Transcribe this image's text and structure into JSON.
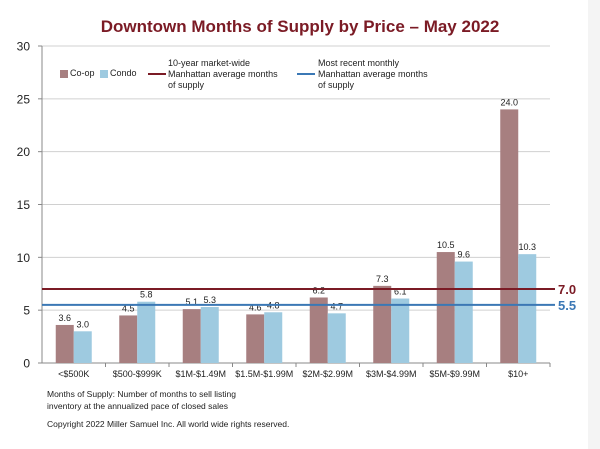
{
  "chart_data": {
    "type": "bar",
    "title": "Downtown Months of Supply by Price – May 2022",
    "xlabel": "",
    "ylabel": "",
    "ylim": [
      0,
      30
    ],
    "yticks": [
      "0",
      "5",
      "10",
      "15",
      "20",
      "25",
      "30"
    ],
    "grid": true,
    "categories": [
      "<$500K",
      "$500-$999K",
      "$1M-$1.49M",
      "$1.5M-$1.99M",
      "$2M-$2.99M",
      "$3M-$4.99M",
      "$5M-$9.99M",
      "$10+"
    ],
    "series": [
      {
        "name": "Co-op",
        "color": "#a77f80",
        "values": [
          3.6,
          4.5,
          5.1,
          4.6,
          6.2,
          7.3,
          10.5,
          24.0
        ],
        "labels": [
          "3.6",
          "4.5",
          "5.1",
          "4.6",
          "6.2",
          "7.3",
          "10.5",
          "24.0"
        ]
      },
      {
        "name": "Condo",
        "color": "#9ecae0",
        "values": [
          3.0,
          5.8,
          5.3,
          4.8,
          4.7,
          6.1,
          9.6,
          10.3
        ],
        "labels": [
          "3.0",
          "5.8",
          "5.3",
          "4.8",
          "4.7",
          "6.1",
          "9.6",
          "10.3"
        ]
      }
    ],
    "reference_lines": [
      {
        "name": "10-year market-wide Manhattan average months of supply",
        "value": 7.0,
        "label": "7.0",
        "color": "#7b1b25"
      },
      {
        "name": "Most recent monthly Manhattan average months of supply",
        "value": 5.5,
        "label": "5.5",
        "color": "#3b78b5"
      }
    ],
    "legend": "top-left"
  },
  "legend": {
    "coop": "Co-op",
    "condo": "Condo",
    "ten_year": "10-year market-wide Manhattan average months of supply",
    "recent": "Most recent monthly Manhattan average months of supply"
  },
  "footnote": {
    "line1": "Months of Supply: Number of months to sell listing",
    "line2": "inventory at the annualized pace of closed sales",
    "copyright": "Copyright 2022 Miller Samuel Inc.  All world wide rights reserved."
  }
}
